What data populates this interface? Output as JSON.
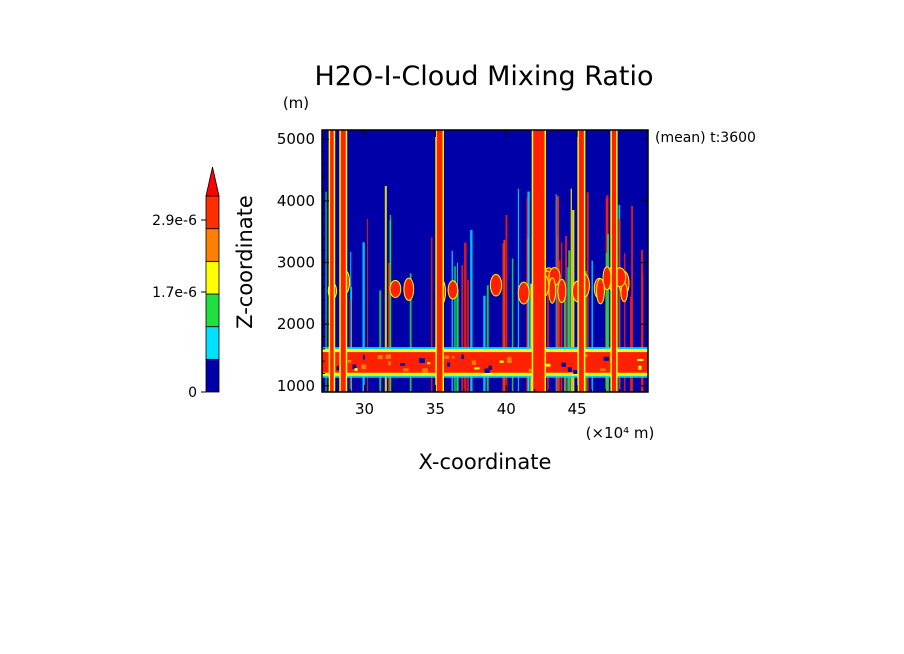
{
  "chart_data": {
    "type": "heatmap",
    "title": "H2O-I-Cloud Mixing Ratio",
    "xlabel": "X-coordinate",
    "ylabel": "Z-coordinate",
    "x_unit": "(×10⁴ m)",
    "y_unit": "(m)",
    "annotation": "(mean) t:3600",
    "xlim": [
      27,
      50
    ],
    "ylim": [
      900,
      5150
    ],
    "x_ticks": [
      30,
      35,
      40,
      45
    ],
    "y_ticks": [
      1000,
      2000,
      3000,
      4000,
      5000
    ],
    "colorbar": {
      "labels": [
        {
          "text": "0",
          "value": 0
        },
        {
          "text": "1.7e-6",
          "value": 1.7e-06
        },
        {
          "text": "2.9e-6",
          "value": 2.9e-06
        }
      ],
      "colors": [
        "#0000a8",
        "#00e0ff",
        "#20e040",
        "#ffff00",
        "#ff8000",
        "#ff3000",
        "#ff0000"
      ]
    },
    "background_color": "#0000a8",
    "high_color": "#ff2000",
    "layer": {
      "z_bottom": 1180,
      "z_top": 1580
    },
    "towers": [
      {
        "x": 27.7,
        "z_top": 5150,
        "width": 0.25
      },
      {
        "x": 28.5,
        "z_top": 5150,
        "width": 0.35
      },
      {
        "x": 35.3,
        "z_top": 5150,
        "width": 0.4
      },
      {
        "x": 42.3,
        "z_top": 5150,
        "width": 0.8
      },
      {
        "x": 45.3,
        "z_top": 5150,
        "width": 0.35
      },
      {
        "x": 47.6,
        "z_top": 5150,
        "width": 0.3
      }
    ]
  }
}
